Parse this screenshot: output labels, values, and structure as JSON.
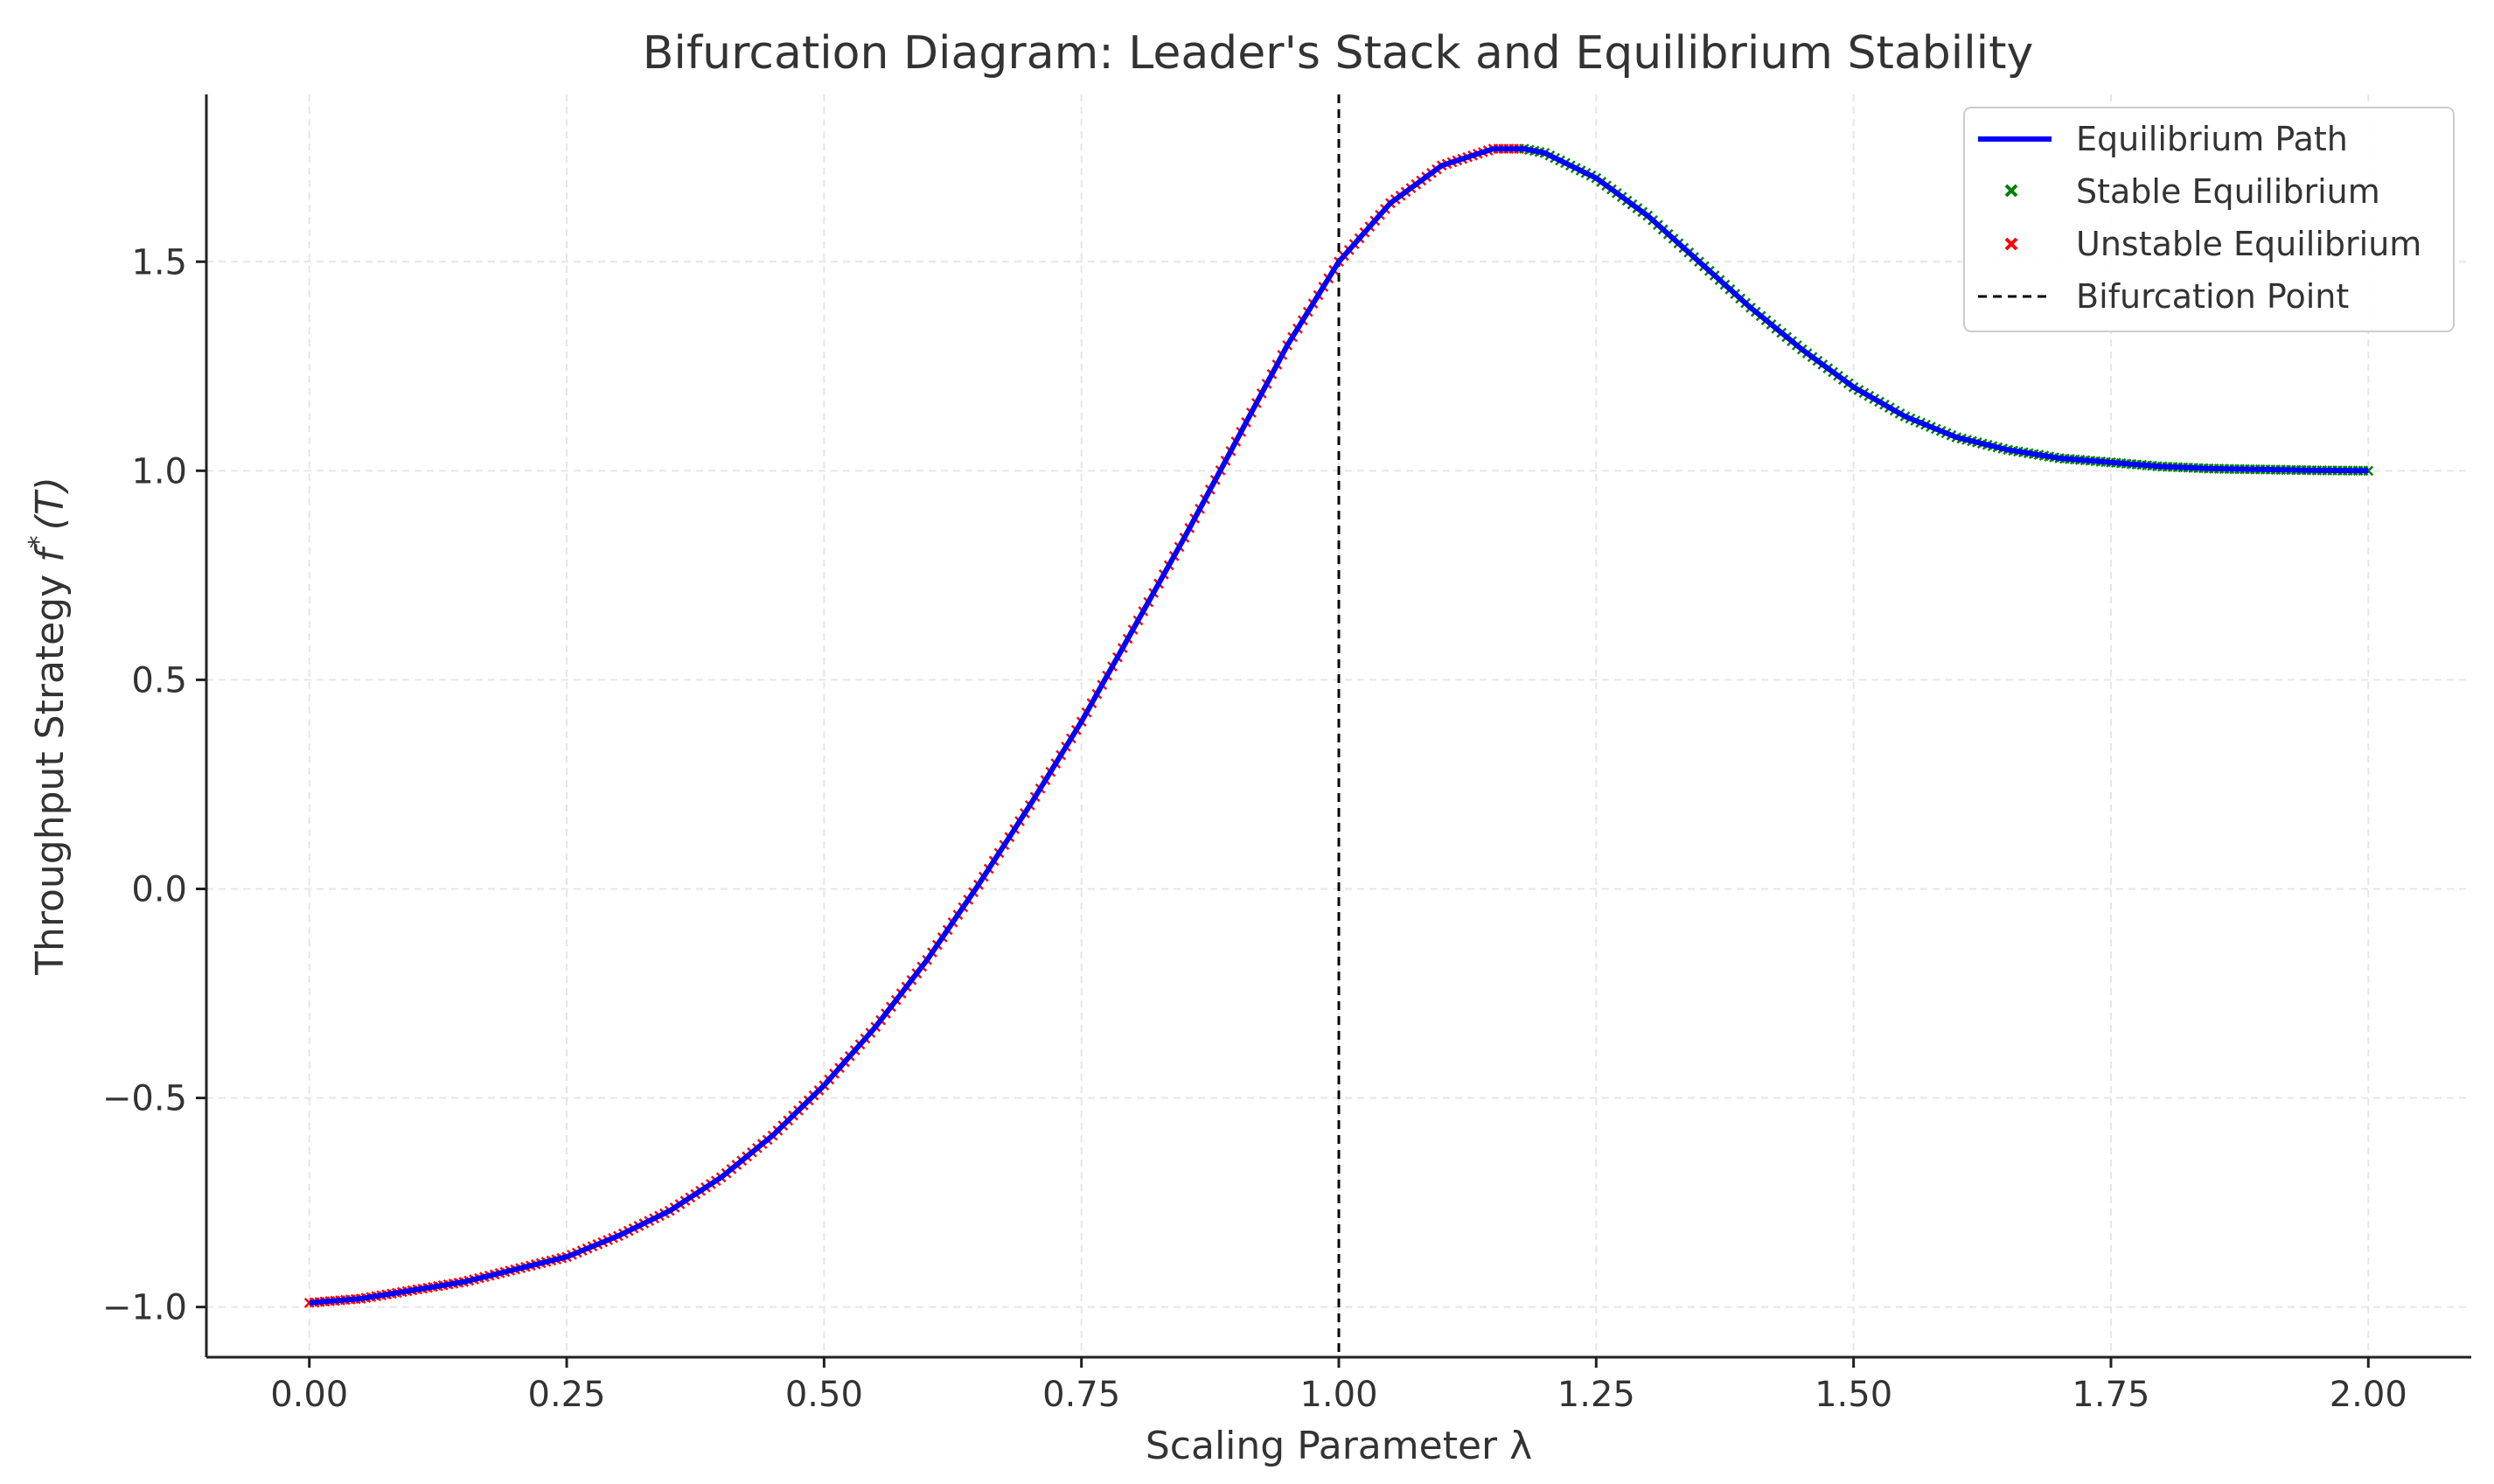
{
  "chart_data": {
    "type": "line",
    "title": "Bifurcation Diagram: Leader's Stack and Equilibrium Stability",
    "xlabel": "Scaling Parameter λ",
    "ylabel_main": "Throughput Strategy ",
    "ylabel_func": "f",
    "ylabel_sup": "*",
    "ylabel_arg": "(T)",
    "xlim": [
      -0.1,
      2.1
    ],
    "ylim": [
      -1.12,
      1.9
    ],
    "xticks": [
      0.0,
      0.25,
      0.5,
      0.75,
      1.0,
      1.25,
      1.5,
      1.75,
      2.0
    ],
    "xtick_labels": [
      "0.00",
      "0.25",
      "0.50",
      "0.75",
      "1.00",
      "1.25",
      "1.50",
      "1.75",
      "2.00"
    ],
    "yticks": [
      -1.0,
      -0.5,
      0.0,
      0.5,
      1.0,
      1.5
    ],
    "ytick_labels": [
      "−1.0",
      "−0.5",
      "0.0",
      "0.5",
      "1.0",
      "1.5"
    ],
    "grid": true,
    "legend_position": "top-right",
    "bifurcation_x": 1.0,
    "series": [
      {
        "name": "Equilibrium Path",
        "style": "line",
        "color": "#0000ff",
        "x": [
          0.0,
          0.05,
          0.1,
          0.15,
          0.2,
          0.25,
          0.3,
          0.35,
          0.4,
          0.45,
          0.5,
          0.55,
          0.6,
          0.65,
          0.7,
          0.75,
          0.8,
          0.85,
          0.9,
          0.95,
          1.0,
          1.05,
          1.1,
          1.15,
          1.18,
          1.2,
          1.25,
          1.3,
          1.35,
          1.4,
          1.45,
          1.5,
          1.55,
          1.6,
          1.65,
          1.7,
          1.75,
          1.8,
          1.85,
          1.9,
          1.95,
          2.0
        ],
        "y": [
          -0.99,
          -0.98,
          -0.96,
          -0.94,
          -0.91,
          -0.88,
          -0.83,
          -0.77,
          -0.69,
          -0.59,
          -0.47,
          -0.33,
          -0.17,
          0.01,
          0.2,
          0.4,
          0.62,
          0.84,
          1.07,
          1.3,
          1.5,
          1.64,
          1.73,
          1.77,
          1.77,
          1.76,
          1.7,
          1.61,
          1.5,
          1.39,
          1.29,
          1.2,
          1.13,
          1.08,
          1.05,
          1.03,
          1.02,
          1.01,
          1.005,
          1.003,
          1.001,
          1.0
        ]
      },
      {
        "name": "Stable Equilibrium",
        "style": "x-marker",
        "color": "#008000",
        "x_range": [
          1.18,
          2.0
        ]
      },
      {
        "name": "Unstable Equilibrium",
        "style": "x-marker",
        "color": "#ff0000",
        "x_range": [
          0.0,
          1.18
        ]
      },
      {
        "name": "Bifurcation Point",
        "style": "dashed-vline",
        "color": "#000000"
      }
    ]
  }
}
